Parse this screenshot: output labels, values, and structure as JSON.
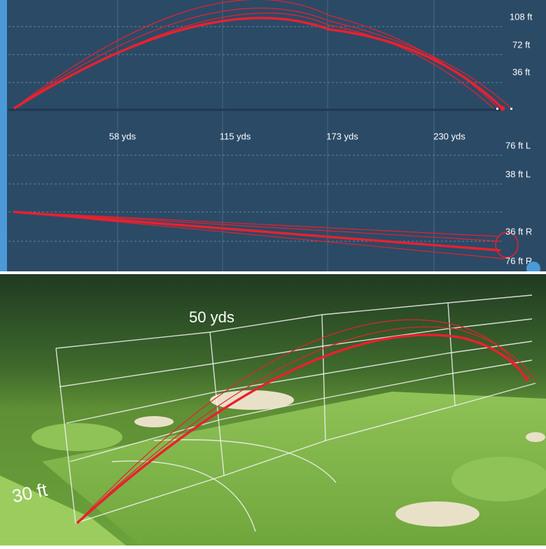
{
  "side_view": {
    "height_labels": [
      "108 ft",
      "72 ft",
      "36 ft"
    ],
    "distance_labels": [
      "58 yds",
      "115 yds",
      "173 yds",
      "230 yds"
    ]
  },
  "top_view": {
    "lateral_labels": [
      "76 ft L",
      "38 ft L",
      "36 ft R",
      "76 ft R"
    ]
  },
  "scene_view": {
    "distance_label": "50 yds",
    "height_label": "30 ft"
  }
}
